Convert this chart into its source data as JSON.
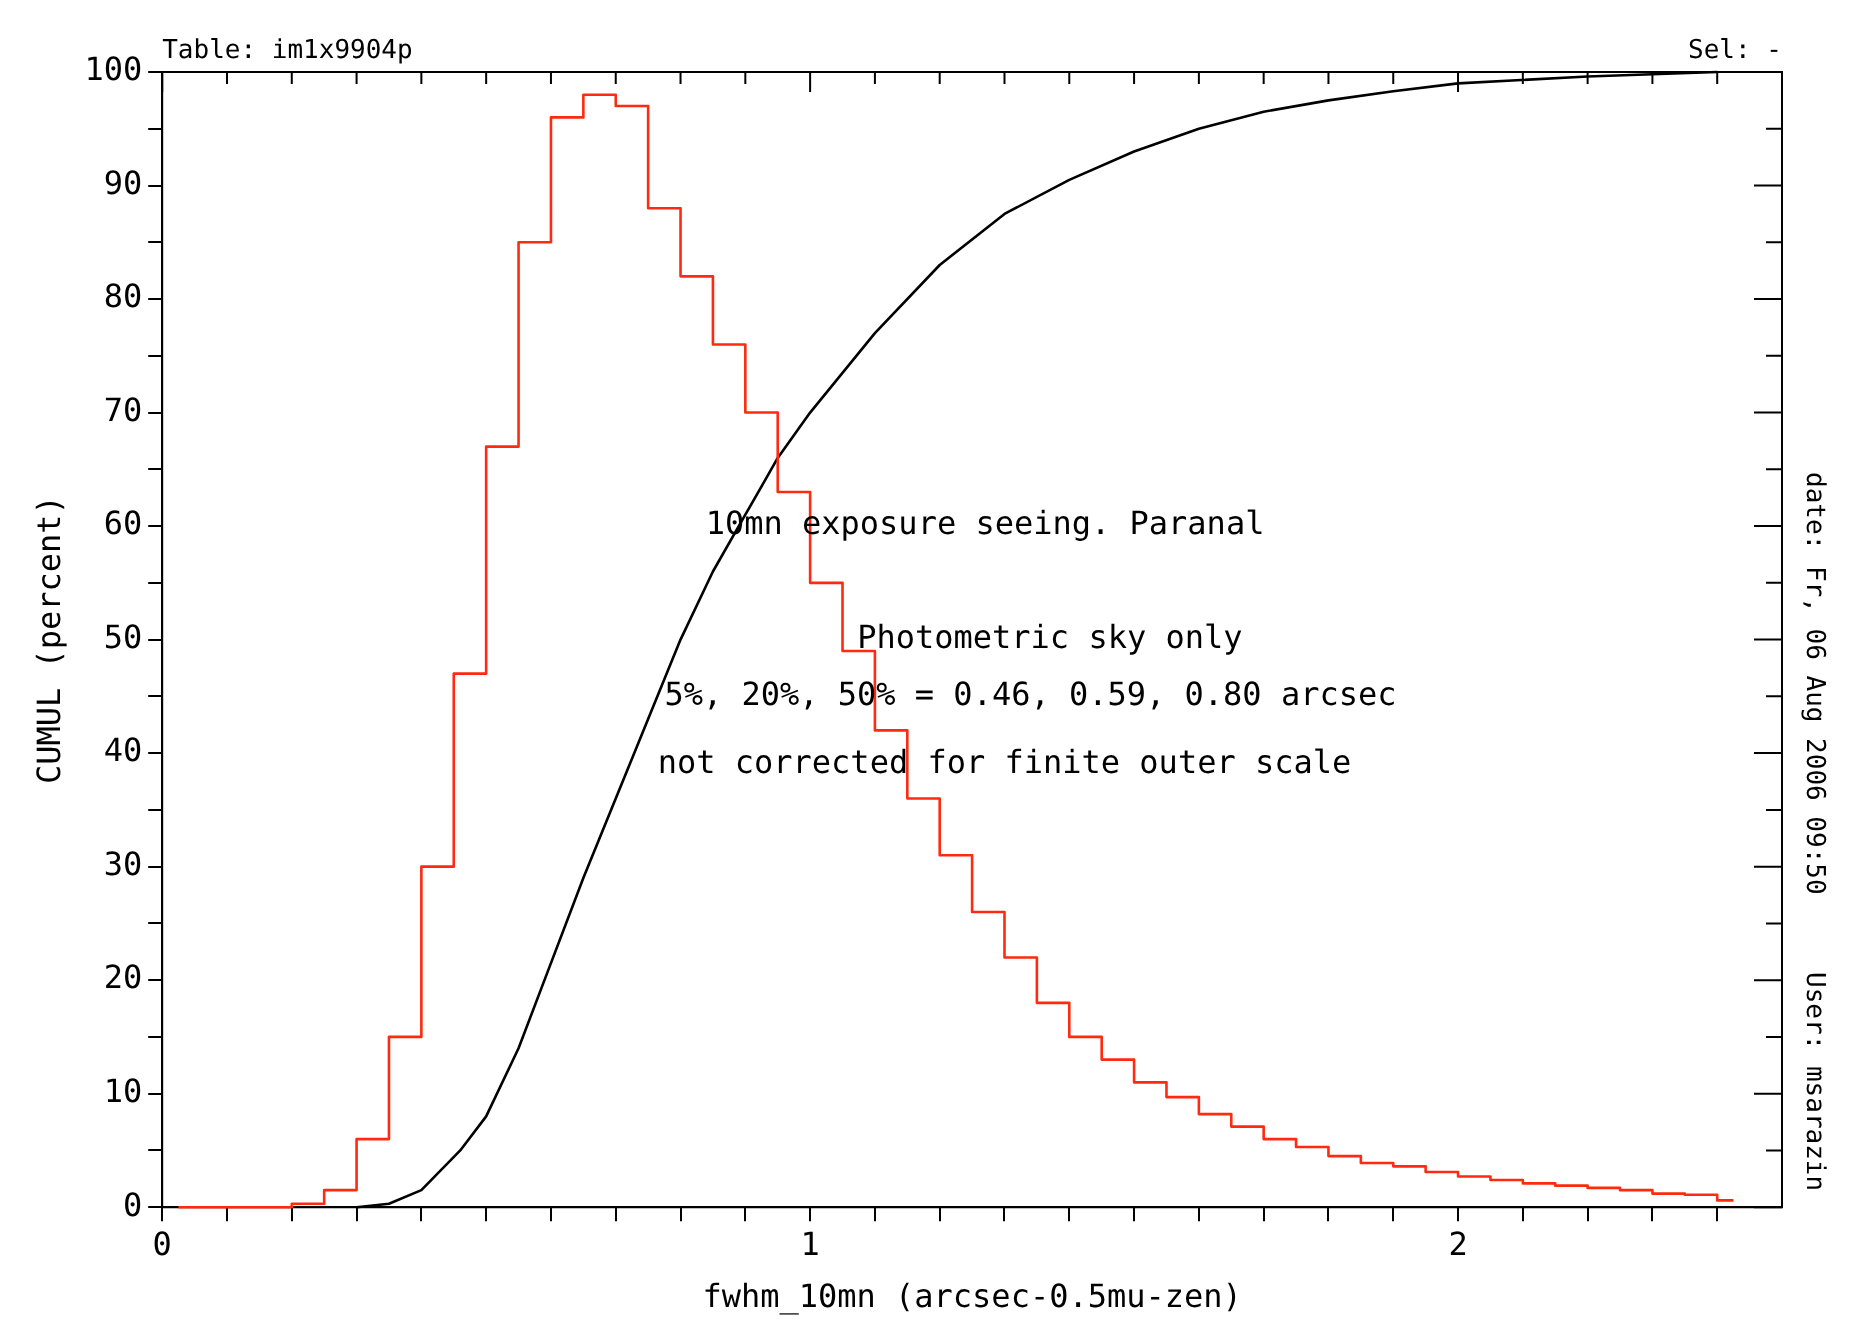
{
  "chart_data": {
    "type": "step",
    "xlabel": "fwhm_10mn (arcsec-0.5mu-zen)",
    "ylabel": "CUMUL (percent)",
    "annotations": [
      "Table: im1x9904p",
      "Sel: -",
      "10mn exposure seeing. Paranal",
      "Photometric sky only",
      "5%, 20%, 50% = 0.46, 0.59, 0.80 arcsec",
      "not corrected for finite outer scale",
      "date: Fr, 06 Aug 2006 09:50",
      "User: msarazin"
    ],
    "series": [
      {
        "color": "#ff2a10",
        "x": [
          0.025,
          0.075,
          0.125,
          0.175,
          0.225,
          0.275,
          0.325,
          0.375,
          0.425,
          0.475,
          0.525,
          0.575,
          0.625,
          0.675,
          0.725,
          0.775,
          0.825,
          0.875,
          0.925,
          0.975,
          1.025,
          1.075,
          1.125,
          1.175,
          1.225,
          1.275,
          1.325,
          1.375,
          1.425,
          1.475,
          1.525,
          1.575,
          1.625,
          1.675,
          1.725,
          1.775,
          1.825,
          1.875,
          1.925,
          1.975,
          2.025,
          2.075,
          2.125,
          2.175,
          2.225,
          2.275,
          2.325,
          2.375,
          2.425
        ],
        "values": [
          0,
          0,
          0,
          0,
          0.3,
          1.5,
          6,
          15,
          30,
          47,
          67,
          85,
          96,
          98,
          97,
          88,
          82,
          76,
          70,
          63,
          55,
          49,
          42,
          36,
          31,
          26,
          22,
          18,
          15,
          13,
          11,
          9.7,
          8.2,
          7.1,
          6,
          5.3,
          4.5,
          3.9,
          3.6,
          3.1,
          2.7,
          2.4,
          2.1,
          1.9,
          1.7,
          1.5,
          1.2,
          1.1,
          0.6
        ]
      },
      {
        "type": "line",
        "color": "#000000",
        "x": [
          0.3,
          0.35,
          0.4,
          0.46,
          0.5,
          0.55,
          0.59,
          0.65,
          0.7,
          0.75,
          0.8,
          0.85,
          0.9,
          0.95,
          1.0,
          1.1,
          1.2,
          1.3,
          1.4,
          1.5,
          1.6,
          1.7,
          1.8,
          1.9,
          2.0,
          2.2,
          2.4
        ],
        "values": [
          0,
          0.3,
          1.5,
          5,
          8,
          14,
          20,
          29,
          36,
          43,
          50,
          56,
          61,
          66,
          70,
          77,
          83,
          87.5,
          90.5,
          93,
          95,
          96.5,
          97.5,
          98.3,
          99,
          99.6,
          100
        ]
      }
    ],
    "xlim": [
      0,
      2.5
    ],
    "xticks": [
      0,
      {
        "value": 0.1,
        "label": null
      },
      {
        "value": 0.2,
        "label": null
      },
      {
        "value": 0.3,
        "label": null
      },
      {
        "value": 0.4,
        "label": null
      },
      {
        "value": 0.5,
        "label": null
      },
      {
        "value": 0.6,
        "label": null
      },
      {
        "value": 0.7,
        "label": null
      },
      {
        "value": 0.8,
        "label": null
      },
      {
        "value": 0.9,
        "label": null
      },
      1,
      {
        "value": 1.1,
        "label": null
      },
      {
        "value": 1.2,
        "label": null
      },
      {
        "value": 1.3,
        "label": null
      },
      {
        "value": 1.4,
        "label": null
      },
      {
        "value": 1.5,
        "label": null
      },
      {
        "value": 1.6,
        "label": null
      },
      {
        "value": 1.7,
        "label": null
      },
      {
        "value": 1.8,
        "label": null
      },
      {
        "value": 1.9,
        "label": null
      },
      2,
      {
        "value": 2.1,
        "label": null
      },
      {
        "value": 2.2,
        "label": null
      },
      {
        "value": 2.3,
        "label": null
      },
      {
        "value": 2.4,
        "label": null
      }
    ],
    "ylim": [
      0,
      100
    ],
    "yticks": [
      0,
      {
        "value": 5,
        "label": null
      },
      10,
      {
        "value": 15,
        "label": null
      },
      20,
      {
        "value": 25,
        "label": null
      },
      30,
      {
        "value": 35,
        "label": null
      },
      40,
      {
        "value": 45,
        "label": null
      },
      50,
      {
        "value": 55,
        "label": null
      },
      60,
      {
        "value": 65,
        "label": null
      },
      70,
      {
        "value": 75,
        "label": null
      },
      80,
      {
        "value": 85,
        "label": null
      },
      90,
      {
        "value": 95,
        "label": null
      },
      100
    ],
    "grid": false,
    "legend": false
  }
}
